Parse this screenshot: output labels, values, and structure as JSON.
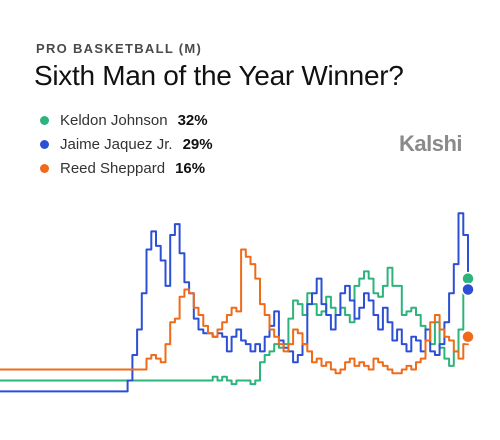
{
  "header": {
    "category": "PRO BASKETBALL (M)",
    "title": "Sixth Man of the Year Winner?",
    "brand": "Kalshi"
  },
  "legend": [
    {
      "name": "Keldon Johnson",
      "pct": "32%",
      "color": "#2db37c"
    },
    {
      "name": "Jaime Jaquez Jr.",
      "pct": "29%",
      "color": "#2c4fd6"
    },
    {
      "name": "Reed Sheppard",
      "pct": "16%",
      "color": "#ef6b1a"
    }
  ],
  "chart_data": {
    "type": "line",
    "ylim": [
      0,
      55
    ],
    "x_points": 100,
    "grid": false,
    "series": [
      {
        "name": "Keldon Johnson",
        "color": "#2db37c",
        "end_marker": true,
        "values": [
          4,
          4,
          4,
          4,
          4,
          4,
          4,
          4,
          4,
          4,
          4,
          4,
          4,
          4,
          4,
          4,
          4,
          4,
          4,
          4,
          4,
          4,
          4,
          4,
          4,
          4,
          4,
          4,
          4,
          4,
          4,
          4,
          4,
          4,
          4,
          4,
          4,
          4,
          4,
          4,
          4,
          4,
          4,
          4,
          4,
          5,
          4,
          5,
          4,
          3,
          4,
          4,
          4,
          3,
          4,
          9,
          11,
          12,
          14,
          13,
          14,
          21,
          26,
          25,
          22,
          28,
          25,
          22,
          23,
          27,
          24,
          22,
          24,
          22,
          20,
          30,
          32,
          34,
          32,
          28,
          27,
          30,
          35,
          30,
          30,
          22,
          23,
          24,
          22,
          19,
          15,
          14,
          20,
          13,
          10,
          8,
          12,
          18,
          28,
          32
        ]
      },
      {
        "name": "Jaime Jaquez Jr.",
        "color": "#2c4fd6",
        "end_marker": true,
        "values": [
          1,
          1,
          1,
          1,
          1,
          1,
          1,
          1,
          1,
          1,
          1,
          1,
          1,
          1,
          1,
          1,
          1,
          1,
          1,
          1,
          1,
          1,
          1,
          1,
          1,
          1,
          1,
          4,
          11,
          18,
          28,
          40,
          45,
          41,
          37,
          30,
          44,
          47,
          39,
          31,
          28,
          21,
          18,
          17,
          17,
          16,
          17,
          16,
          12,
          16,
          18,
          15,
          14,
          12,
          14,
          12,
          16,
          19,
          23,
          15,
          13,
          12,
          9,
          11,
          14,
          25,
          28,
          32,
          25,
          22,
          18,
          22,
          28,
          30,
          26,
          21,
          24,
          28,
          26,
          22,
          18,
          24,
          20,
          15,
          18,
          14,
          12,
          16,
          15,
          12,
          18,
          12,
          11,
          14,
          20,
          28,
          36,
          50,
          44,
          29
        ]
      },
      {
        "name": "Reed Sheppard",
        "color": "#ef6b1a",
        "end_marker": true,
        "values": [
          7,
          7,
          7,
          7,
          7,
          7,
          7,
          7,
          7,
          7,
          7,
          7,
          7,
          7,
          7,
          7,
          7,
          7,
          7,
          7,
          7,
          7,
          7,
          7,
          7,
          7,
          7,
          7,
          7,
          7,
          7,
          10,
          11,
          10,
          9,
          14,
          20,
          21,
          27,
          29,
          28,
          24,
          22,
          19,
          17,
          16,
          18,
          20,
          22,
          24,
          23,
          40,
          38,
          36,
          32,
          25,
          22,
          18,
          16,
          14,
          12,
          14,
          18,
          17,
          14,
          12,
          9,
          10,
          8,
          9,
          7,
          6,
          7,
          9,
          10,
          8,
          9,
          8,
          7,
          10,
          9,
          8,
          7,
          6,
          6,
          7,
          8,
          7,
          9,
          10,
          15,
          20,
          22,
          18,
          16,
          15,
          12,
          10,
          14,
          16
        ]
      }
    ]
  }
}
